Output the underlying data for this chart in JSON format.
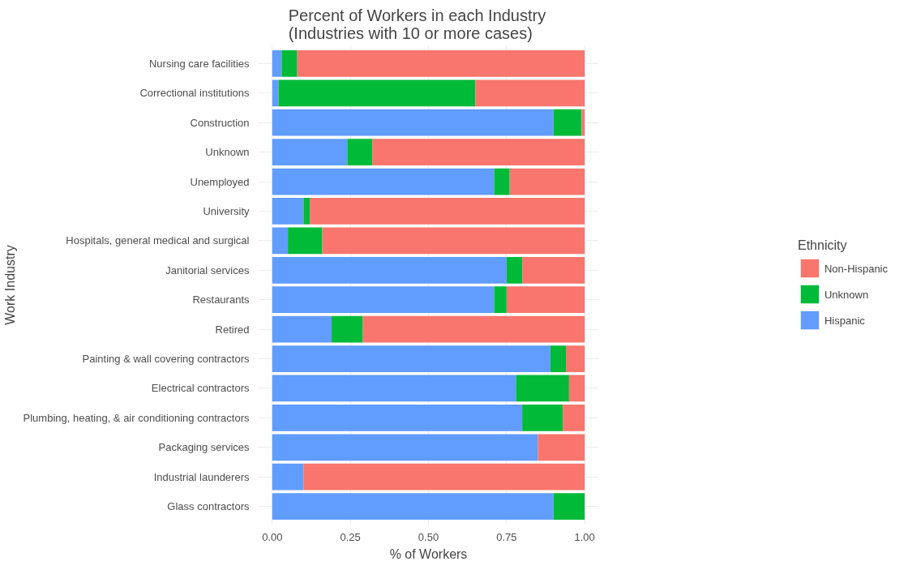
{
  "chart_data": {
    "type": "bar",
    "orientation": "horizontal",
    "stacked": true,
    "title": "Percent of Workers in each Industry\n        (Industries with 10 or more cases)",
    "xlabel": "% of Workers",
    "ylabel": "Work Industry",
    "legend_title": "Ethnicity",
    "categories": [
      "Nursing care facilities",
      "Correctional institutions",
      "Construction",
      "Unknown",
      "Unemployed",
      "University",
      "Hospitals, general medical and surgical",
      "Janitorial services",
      "Restaurants",
      "Retired",
      "Painting & wall covering contractors",
      "Electrical contractors",
      "Plumbing, heating, & air conditioning contractors",
      "Packaging services",
      "Industrial launderers",
      "Glass contractors"
    ],
    "series": [
      {
        "name": "Hispanic",
        "color": "#619cff",
        "values": [
          0.03,
          0.02,
          0.9,
          0.24,
          0.71,
          0.1,
          0.05,
          0.75,
          0.71,
          0.19,
          0.89,
          0.78,
          0.8,
          0.85,
          0.1,
          0.9
        ]
      },
      {
        "name": "Unknown",
        "color": "#00ba38",
        "values": [
          0.05,
          0.63,
          0.09,
          0.08,
          0.05,
          0.02,
          0.11,
          0.05,
          0.04,
          0.1,
          0.05,
          0.17,
          0.13,
          0,
          0,
          0.1
        ]
      },
      {
        "name": "Non-Hispanic",
        "color": "#f8766d",
        "values": [
          0.92,
          0.35,
          0.01,
          0.68,
          0.24,
          0.88,
          0.84,
          0.2,
          0.25,
          0.71,
          0.06,
          0.05,
          0.07,
          0.15,
          0.9,
          0
        ]
      }
    ],
    "xlim": [
      -0.045,
      1.045
    ],
    "xticks": [
      {
        "value": 0,
        "label": "0.00"
      },
      {
        "value": 0.25,
        "label": "0.25"
      },
      {
        "value": 0.5,
        "label": "0.50"
      },
      {
        "value": 0.75,
        "label": "0.75"
      },
      {
        "value": 1,
        "label": "1.00"
      }
    ],
    "grid": true,
    "legend": "right"
  }
}
